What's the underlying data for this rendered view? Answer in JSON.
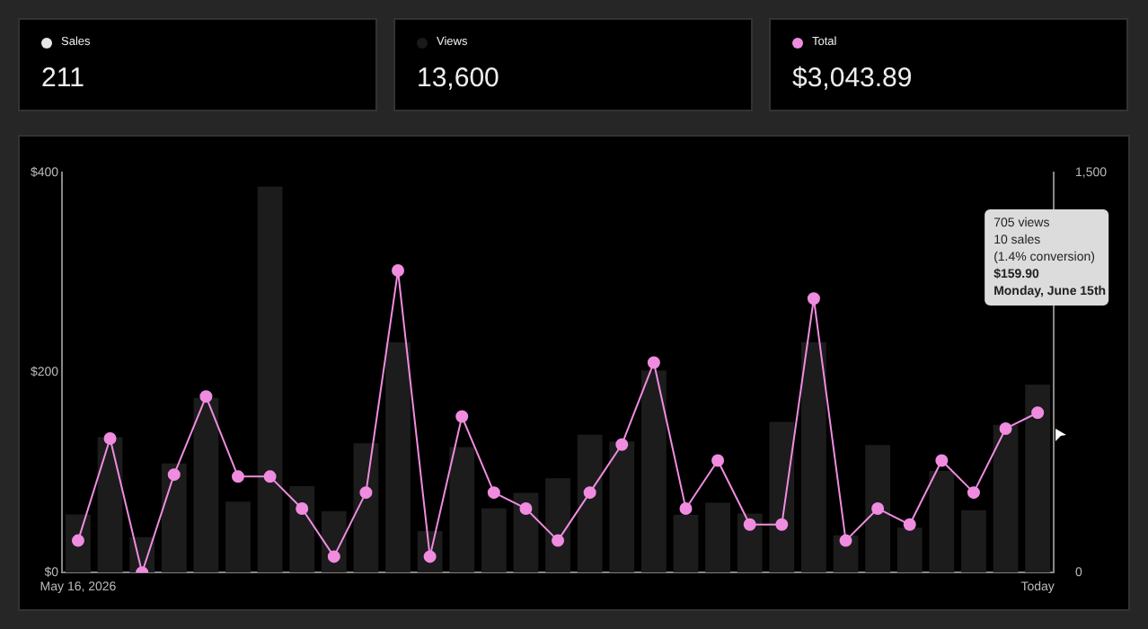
{
  "chart_data": [
    {
      "type": "other",
      "title": "Sales",
      "color": "#e6e6e6",
      "annotations": [
        "211"
      ]
    },
    {
      "type": "other",
      "title": "Views",
      "color": "#1a1a1a",
      "annotations": [
        "13,600"
      ]
    },
    {
      "type": "other",
      "title": "Total",
      "color": "#f08ce0",
      "annotations": [
        "$3,043.89"
      ]
    },
    {
      "type": "bar",
      "categories": [
        "May 16, 2026",
        null,
        null,
        null,
        null,
        null,
        null,
        null,
        null,
        null,
        null,
        null,
        null,
        null,
        null,
        null,
        null,
        null,
        null,
        null,
        null,
        null,
        null,
        null,
        null,
        null,
        null,
        null,
        null,
        null,
        "Today"
      ],
      "series": [
        {
          "type": "bar",
          "axis": "y2",
          "color": "#1c1c1c",
          "values": [
            218,
            508,
            133,
            409,
            655,
            266,
            1447,
            324,
            230,
            485,
            864,
            156,
            471,
            241,
            299,
            354,
            517,
            492,
            758,
            216,
            262,
            221,
            565,
            864,
            140,
            478,
            168,
            381,
            234,
            554,
            705
          ]
        },
        {
          "type": "line",
          "axis": "y",
          "color": "#f08ce0",
          "values": [
            32,
            134,
            0,
            98,
            176,
            96,
            96,
            64,
            16,
            80,
            302,
            16,
            156,
            80,
            64,
            32,
            80,
            128,
            210,
            64,
            112,
            48,
            48,
            274,
            32,
            64,
            48,
            112,
            80,
            144,
            159.9
          ]
        }
      ],
      "ylim": [
        0,
        400
      ],
      "yticks": [
        {
          "value": 0,
          "label": "$0"
        },
        {
          "value": 200,
          "label": "$200"
        },
        {
          "value": 400,
          "label": "$400"
        }
      ],
      "y2lim": [
        0,
        1500
      ],
      "y2ticks": [
        0,
        {
          "value": 1500,
          "label": "1,500"
        }
      ],
      "marker": "circle",
      "grid": false,
      "legend": false,
      "annotations": [
        "705 views\n10 sales\n(1.4% conversion)\n$159.90\nMonday, June 15th"
      ]
    }
  ]
}
